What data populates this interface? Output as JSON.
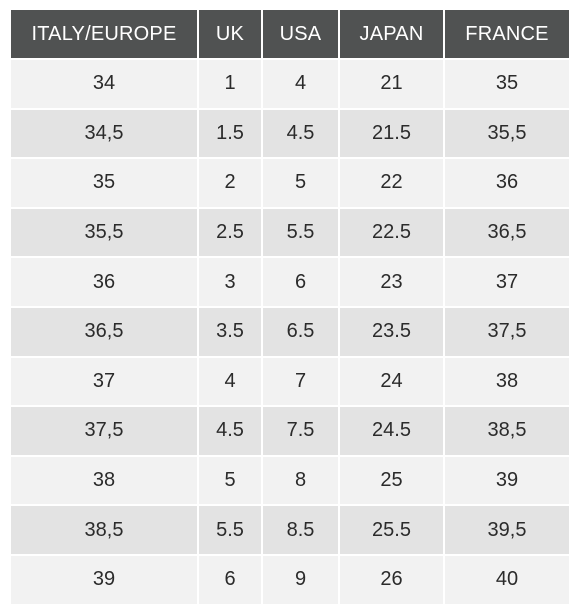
{
  "table": {
    "headers": [
      "ITALY/EUROPE",
      "UK",
      "USA",
      "JAPAN",
      "FRANCE"
    ],
    "rows": [
      [
        "34",
        "1",
        "4",
        "21",
        "35"
      ],
      [
        "34,5",
        "1.5",
        "4.5",
        "21.5",
        "35,5"
      ],
      [
        "35",
        "2",
        "5",
        "22",
        "36"
      ],
      [
        "35,5",
        "2.5",
        "5.5",
        "22.5",
        "36,5"
      ],
      [
        "36",
        "3",
        "6",
        "23",
        "37"
      ],
      [
        "36,5",
        "3.5",
        "6.5",
        "23.5",
        "37,5"
      ],
      [
        "37",
        "4",
        "7",
        "24",
        "38"
      ],
      [
        "37,5",
        "4.5",
        "7.5",
        "24.5",
        "38,5"
      ],
      [
        "38",
        "5",
        "8",
        "25",
        "39"
      ],
      [
        "38,5",
        "5.5",
        "8.5",
        "25.5",
        "39,5"
      ],
      [
        "39",
        "6",
        "9",
        "26",
        "40"
      ]
    ]
  },
  "colors": {
    "header_bg": "#505252",
    "header_text": "#ffffff",
    "row_light": "#f2f2f2",
    "row_dark": "#e3e3e3",
    "cell_text": "#2b2b2b"
  }
}
